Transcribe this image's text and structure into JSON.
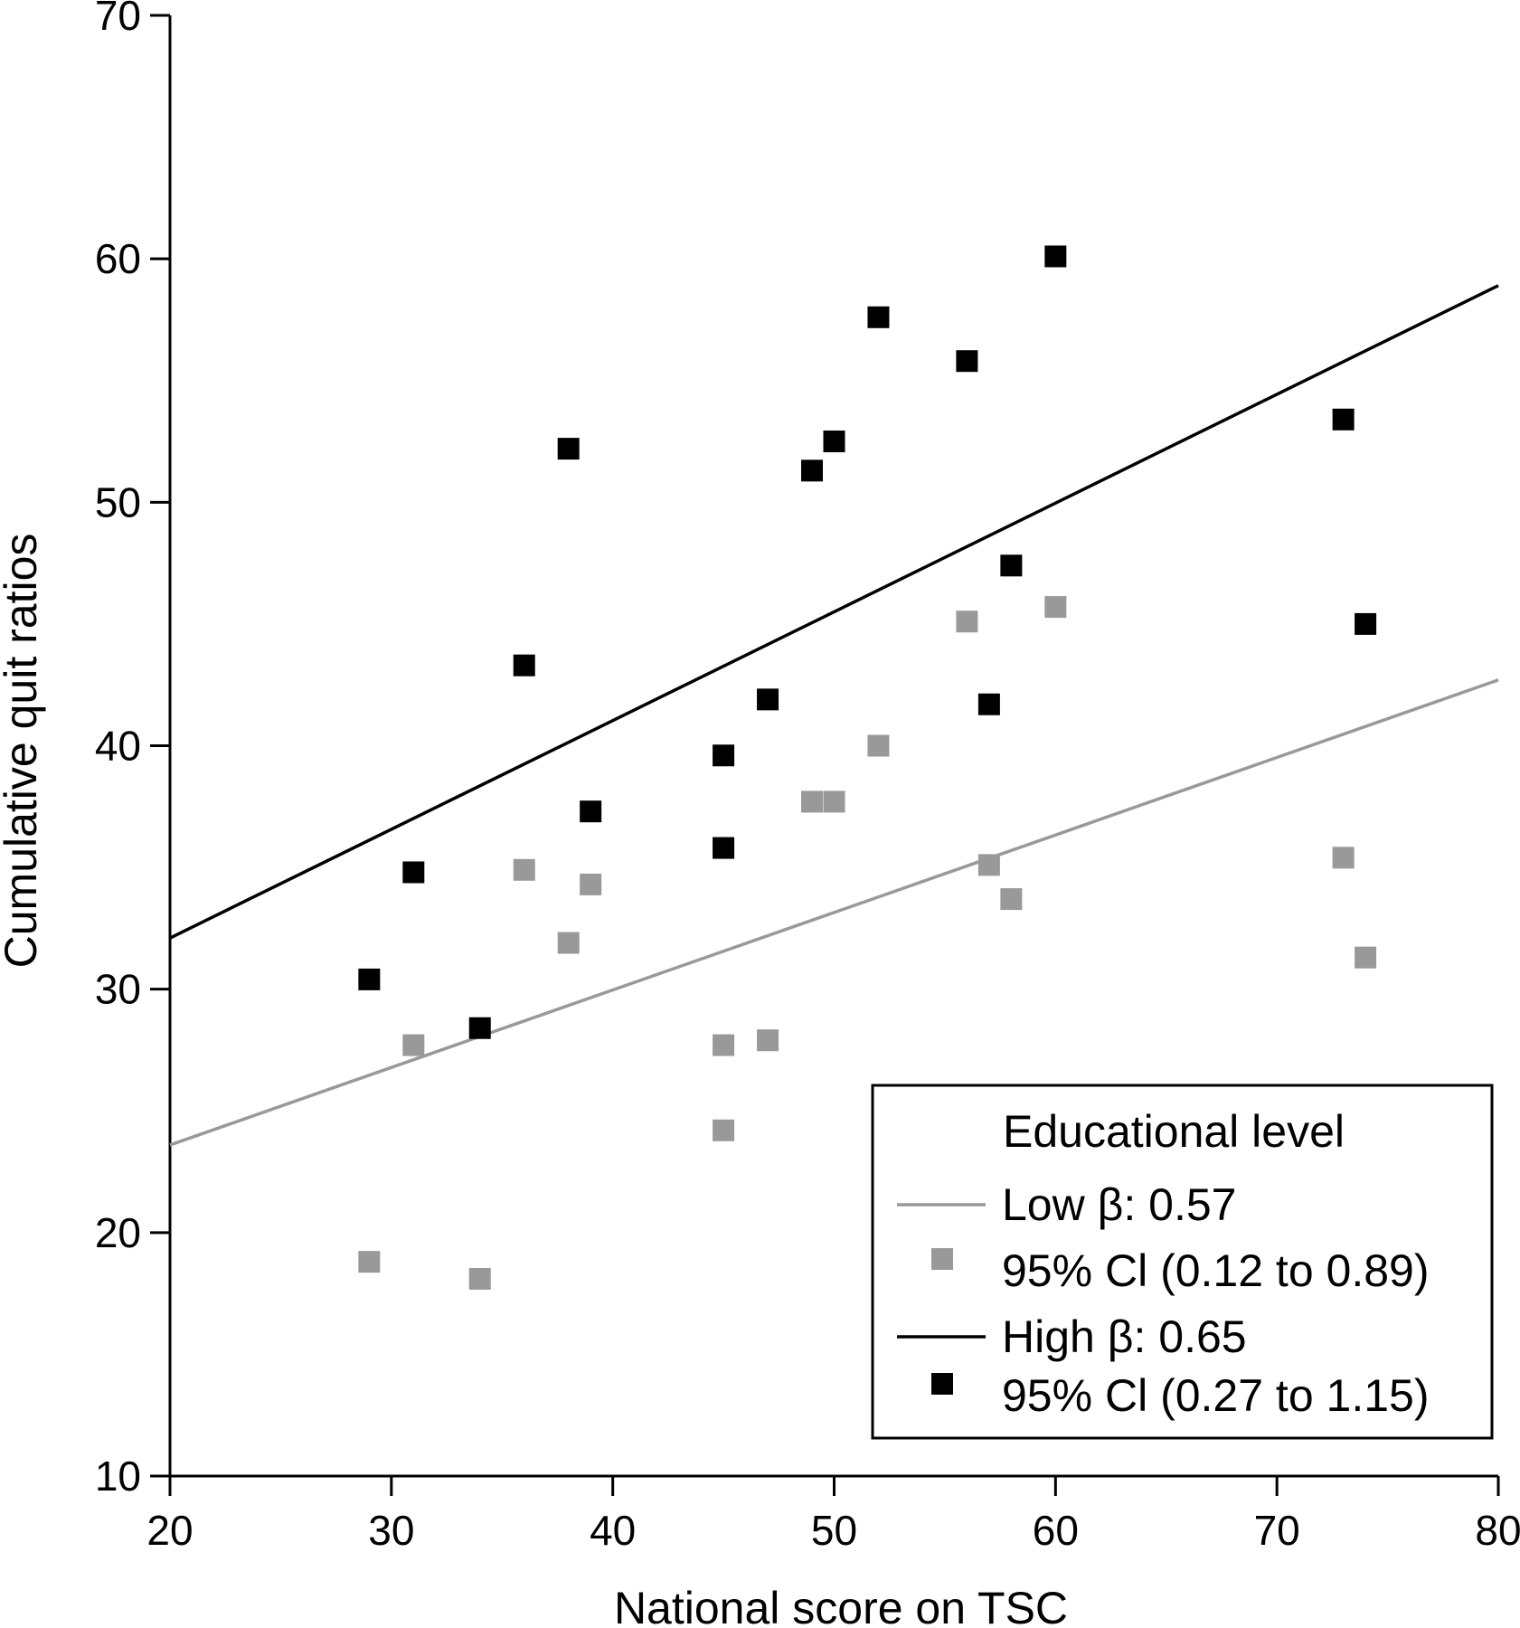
{
  "chart_data": {
    "type": "scatter",
    "title": "",
    "xlabel": "National score on TSC",
    "ylabel": "Cumulative quit ratios",
    "xlim": [
      20,
      80
    ],
    "ylim": [
      10,
      70
    ],
    "xticks": [
      20,
      30,
      40,
      50,
      60,
      70,
      80
    ],
    "yticks": [
      10,
      20,
      30,
      40,
      50,
      60,
      70
    ],
    "grid": false,
    "legend": {
      "position": "bottom-right",
      "title": "Educational level",
      "entries": [
        {
          "kind": "line",
          "series": 0,
          "label": "Low β: 0.57"
        },
        {
          "kind": "marker",
          "series": 0,
          "label": "95% Cl (0.12 to 0.89)"
        },
        {
          "kind": "line",
          "series": 1,
          "label": "High β: 0.65"
        },
        {
          "kind": "marker",
          "series": 1,
          "label": "95% Cl (0.27 to 1.15)"
        }
      ]
    },
    "series": [
      {
        "color": "#999999",
        "points": [
          [
            29,
            18.8
          ],
          [
            31,
            27.7
          ],
          [
            34,
            18.1
          ],
          [
            36,
            34.9
          ],
          [
            38,
            31.9
          ],
          [
            39,
            34.3
          ],
          [
            45,
            27.7
          ],
          [
            45,
            24.2
          ],
          [
            47,
            27.9
          ],
          [
            49,
            37.7
          ],
          [
            50,
            37.7
          ],
          [
            52,
            40.0
          ],
          [
            56,
            45.1
          ],
          [
            57,
            35.1
          ],
          [
            58,
            33.7
          ],
          [
            60,
            45.7
          ],
          [
            73,
            35.4
          ],
          [
            74,
            31.3
          ]
        ],
        "fit": {
          "x": [
            20,
            80
          ],
          "y": [
            23.6,
            42.7
          ]
        }
      },
      {
        "color": "#000000",
        "points": [
          [
            29,
            30.4
          ],
          [
            31,
            34.8
          ],
          [
            34,
            28.4
          ],
          [
            36,
            43.3
          ],
          [
            38,
            52.2
          ],
          [
            39,
            37.3
          ],
          [
            45,
            39.6
          ],
          [
            45,
            35.8
          ],
          [
            47,
            41.9
          ],
          [
            49,
            51.3
          ],
          [
            50,
            52.5
          ],
          [
            52,
            57.6
          ],
          [
            56,
            55.8
          ],
          [
            57,
            41.7
          ],
          [
            58,
            47.4
          ],
          [
            60,
            60.1
          ],
          [
            73,
            53.4
          ],
          [
            74,
            45.0
          ]
        ],
        "fit": {
          "x": [
            20,
            80
          ],
          "y": [
            32.1,
            58.9
          ]
        }
      }
    ]
  }
}
